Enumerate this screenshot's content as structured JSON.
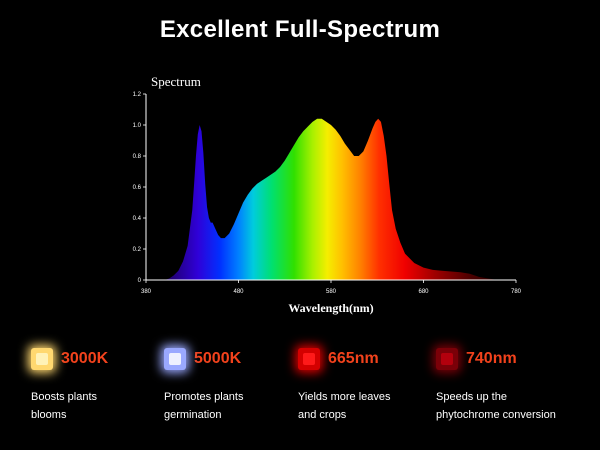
{
  "header": {
    "title": "Excellent Full-Spectrum"
  },
  "chart_data": {
    "type": "area",
    "title": "Spectrum",
    "xlabel": "Wavelength(nm)",
    "ylabel": "",
    "xlim": [
      380,
      780
    ],
    "ylim": [
      0,
      1.2
    ],
    "xticks": [
      380,
      480,
      580,
      680,
      780
    ],
    "yticks": [
      "0",
      "0.2",
      "0.4",
      "0.6",
      "0.8",
      "1.0",
      "1.2"
    ],
    "grid": false,
    "series": [
      {
        "x": [
          380,
          400,
          405,
          410,
          415,
          420,
          425,
          430,
          432,
          434,
          436,
          438,
          440,
          442,
          444,
          446,
          448,
          450,
          452,
          455,
          458,
          461,
          465,
          470,
          475,
          480,
          485,
          490,
          495,
          500,
          505,
          510,
          515,
          520,
          525,
          530,
          535,
          540,
          545,
          550,
          555,
          560,
          565,
          570,
          575,
          580,
          585,
          590,
          595,
          600,
          605,
          610,
          615,
          620,
          625,
          628,
          631,
          634,
          637,
          640,
          643,
          646,
          650,
          655,
          660,
          670,
          680,
          690,
          700,
          710,
          720,
          730,
          740,
          750,
          760,
          770,
          780
        ],
        "y": [
          0,
          0,
          0.01,
          0.03,
          0.06,
          0.12,
          0.22,
          0.45,
          0.62,
          0.8,
          0.94,
          1.0,
          0.96,
          0.82,
          0.62,
          0.47,
          0.4,
          0.37,
          0.37,
          0.33,
          0.29,
          0.27,
          0.27,
          0.3,
          0.36,
          0.43,
          0.5,
          0.55,
          0.59,
          0.62,
          0.64,
          0.66,
          0.68,
          0.7,
          0.73,
          0.77,
          0.82,
          0.87,
          0.92,
          0.96,
          0.99,
          1.02,
          1.04,
          1.04,
          1.02,
          1.0,
          0.97,
          0.93,
          0.88,
          0.84,
          0.8,
          0.8,
          0.83,
          0.9,
          0.98,
          1.02,
          1.04,
          1.02,
          0.93,
          0.8,
          0.62,
          0.45,
          0.33,
          0.24,
          0.17,
          0.11,
          0.08,
          0.065,
          0.06,
          0.055,
          0.05,
          0.04,
          0.02,
          0.01,
          0,
          0,
          0
        ]
      }
    ]
  },
  "features": [
    {
      "value": "3000K",
      "desc": [
        "Boosts plants",
        "blooms"
      ],
      "chip": "#fff2b8",
      "glow": "#ffd870"
    },
    {
      "value": "5000K",
      "desc": [
        "Promotes plants",
        "germination"
      ],
      "chip": "#eef0ff",
      "glow": "#9aa8ff"
    },
    {
      "value": "665nm",
      "desc": [
        "Yields more leaves",
        "and crops"
      ],
      "chip": "#ff1a1a",
      "glow": "#d40000"
    },
    {
      "value": "740nm",
      "desc": [
        "Speeds up the",
        "phytochrome conversion"
      ],
      "chip": "#b3000d",
      "glow": "#7a0008"
    }
  ]
}
